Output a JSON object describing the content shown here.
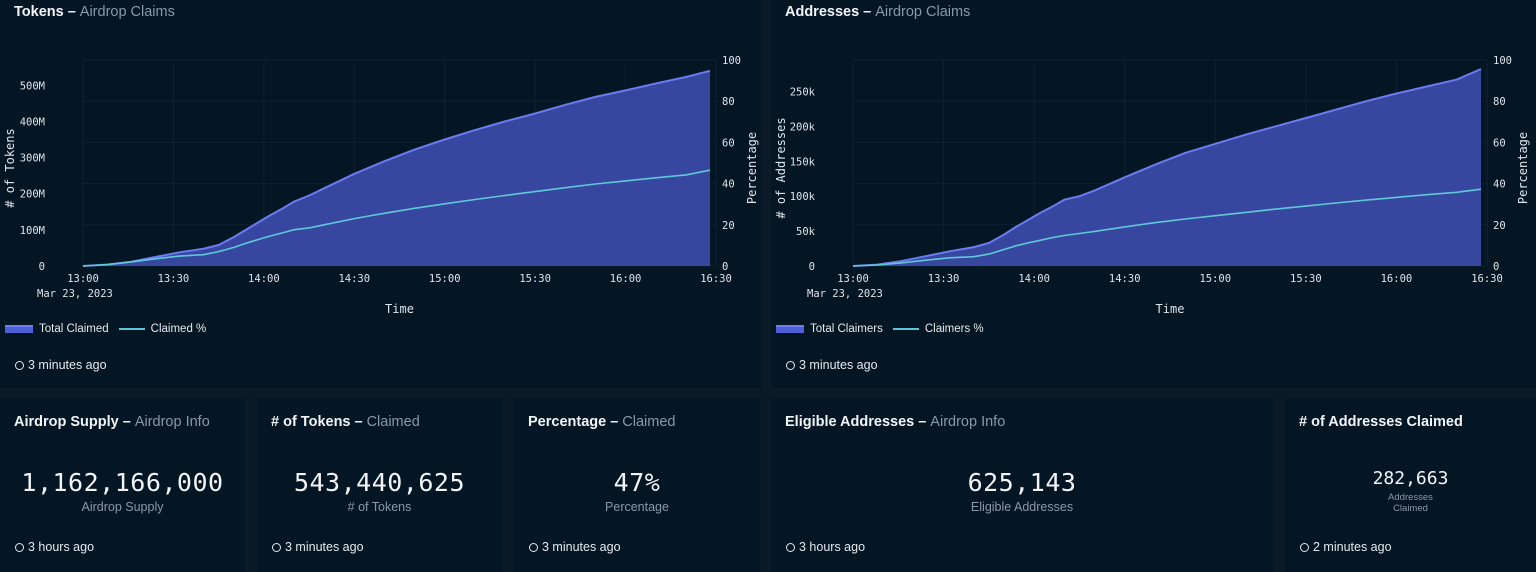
{
  "panels": {
    "tokens": {
      "title": "Tokens",
      "subtitle": "Airdrop Claims",
      "legend_area": "Total Claimed",
      "legend_line": "Claimed %",
      "updated": "3 minutes ago"
    },
    "addresses": {
      "title": "Addresses",
      "subtitle": "Airdrop Claims",
      "legend_area": "Total Claimers",
      "legend_line": "Claimers %",
      "updated": "3 minutes ago"
    }
  },
  "stats": {
    "supply": {
      "title": "Airdrop Supply",
      "subtitle": "Airdrop Info",
      "value": "1,162,166,000",
      "caption": "Airdrop Supply",
      "updated": "3 hours ago"
    },
    "tokens_claimed": {
      "title": "# of Tokens",
      "subtitle": "Claimed",
      "value": "543,440,625",
      "caption": "# of Tokens",
      "updated": "3 minutes ago"
    },
    "percentage": {
      "title": "Percentage",
      "subtitle": "Claimed",
      "value": "47%",
      "caption": "Percentage",
      "updated": "3 minutes ago"
    },
    "eligible": {
      "title": "Eligible Addresses",
      "subtitle": "Airdrop Info",
      "value": "625,143",
      "caption": "Eligible Addresses",
      "updated": "3 hours ago"
    },
    "addresses_claimed": {
      "title": "# of Addresses Claimed",
      "value": "282,663",
      "caption_line1": "Addresses",
      "caption_line2": "Claimed",
      "updated": "2 minutes ago"
    }
  },
  "colors": {
    "area_fill": "#3a4aa6",
    "area_stroke": "#6b7cf0",
    "line": "#5fc8d8",
    "background": "#041524"
  },
  "chart_data": [
    {
      "type": "area",
      "title": "Tokens",
      "xlabel": "Time",
      "ylabel": "# of Tokens",
      "y2label": "Percentage",
      "x_ticks": [
        "13:00",
        "13:30",
        "14:00",
        "14:30",
        "15:00",
        "15:30",
        "16:00",
        "16:30"
      ],
      "x_date_label": "Mar 23, 2023",
      "x_minutes": [
        0,
        8,
        16,
        24,
        32,
        40,
        45,
        50,
        54,
        58,
        62,
        66,
        70,
        75,
        80,
        90,
        100,
        110,
        120,
        130,
        140,
        150,
        160,
        170,
        180,
        190,
        200,
        208
      ],
      "ylim": [
        0,
        570
      ],
      "y_ticks": [
        0,
        100,
        200,
        300,
        400,
        500
      ],
      "y_tick_labels": [
        "0",
        "100M",
        "200M",
        "300M",
        "400M",
        "500M"
      ],
      "y2lim": [
        0,
        100
      ],
      "y2_ticks": [
        0,
        20,
        40,
        60,
        80,
        100
      ],
      "series": [
        {
          "name": "Total Claimed",
          "kind": "area",
          "unit": "M",
          "values": [
            0,
            4,
            12,
            25,
            38,
            48,
            58,
            80,
            100,
            120,
            140,
            158,
            178,
            195,
            215,
            255,
            290,
            322,
            350,
            376,
            400,
            422,
            446,
            468,
            486,
            505,
            523,
            540
          ]
        },
        {
          "name": "Claimed %",
          "kind": "line",
          "unit": "%",
          "values": [
            0,
            0.7,
            2,
            3.5,
            4.8,
            5.5,
            7,
            9,
            11,
            12.8,
            14.5,
            16,
            17.6,
            18.5,
            20,
            23,
            25.6,
            28,
            30.2,
            32.3,
            34.2,
            36.1,
            38,
            39.8,
            41.3,
            42.8,
            44.2,
            46.5
          ]
        }
      ]
    },
    {
      "type": "area",
      "title": "Addresses",
      "xlabel": "Time",
      "ylabel": "# of Addresses",
      "y2label": "Percentage",
      "x_ticks": [
        "13:00",
        "13:30",
        "14:00",
        "14:30",
        "15:00",
        "15:30",
        "16:00",
        "16:30"
      ],
      "x_date_label": "Mar 23, 2023",
      "x_minutes": [
        0,
        8,
        16,
        24,
        32,
        40,
        45,
        50,
        54,
        58,
        62,
        66,
        70,
        75,
        80,
        90,
        100,
        110,
        120,
        130,
        140,
        150,
        160,
        170,
        180,
        190,
        200,
        208
      ],
      "ylim": [
        0,
        295
      ],
      "y_ticks": [
        0,
        50,
        100,
        150,
        200,
        250
      ],
      "y_tick_labels": [
        "0",
        "50k",
        "100k",
        "150k",
        "200k",
        "250k"
      ],
      "y2lim": [
        0,
        100
      ],
      "y2_ticks": [
        0,
        20,
        40,
        60,
        80,
        100
      ],
      "series": [
        {
          "name": "Total Claimers",
          "kind": "area",
          "unit": "k",
          "values": [
            0,
            2,
            7,
            14,
            21,
            27,
            33,
            45,
            56,
            66,
            76,
            85,
            95,
            100,
            108,
            127,
            145,
            162,
            175,
            188,
            200,
            212,
            224,
            236,
            247,
            257,
            267,
            282
          ]
        },
        {
          "name": "Claimers %",
          "kind": "line",
          "unit": "%",
          "values": [
            0,
            0.5,
            1.5,
            2.8,
            4,
            4.5,
            5.8,
            8,
            9.8,
            11.2,
            12.5,
            13.8,
            14.8,
            15.8,
            16.8,
            19,
            21,
            22.8,
            24.4,
            26,
            27.6,
            29.1,
            30.6,
            32,
            33.3,
            34.6,
            35.8,
            37.3
          ]
        }
      ]
    }
  ]
}
